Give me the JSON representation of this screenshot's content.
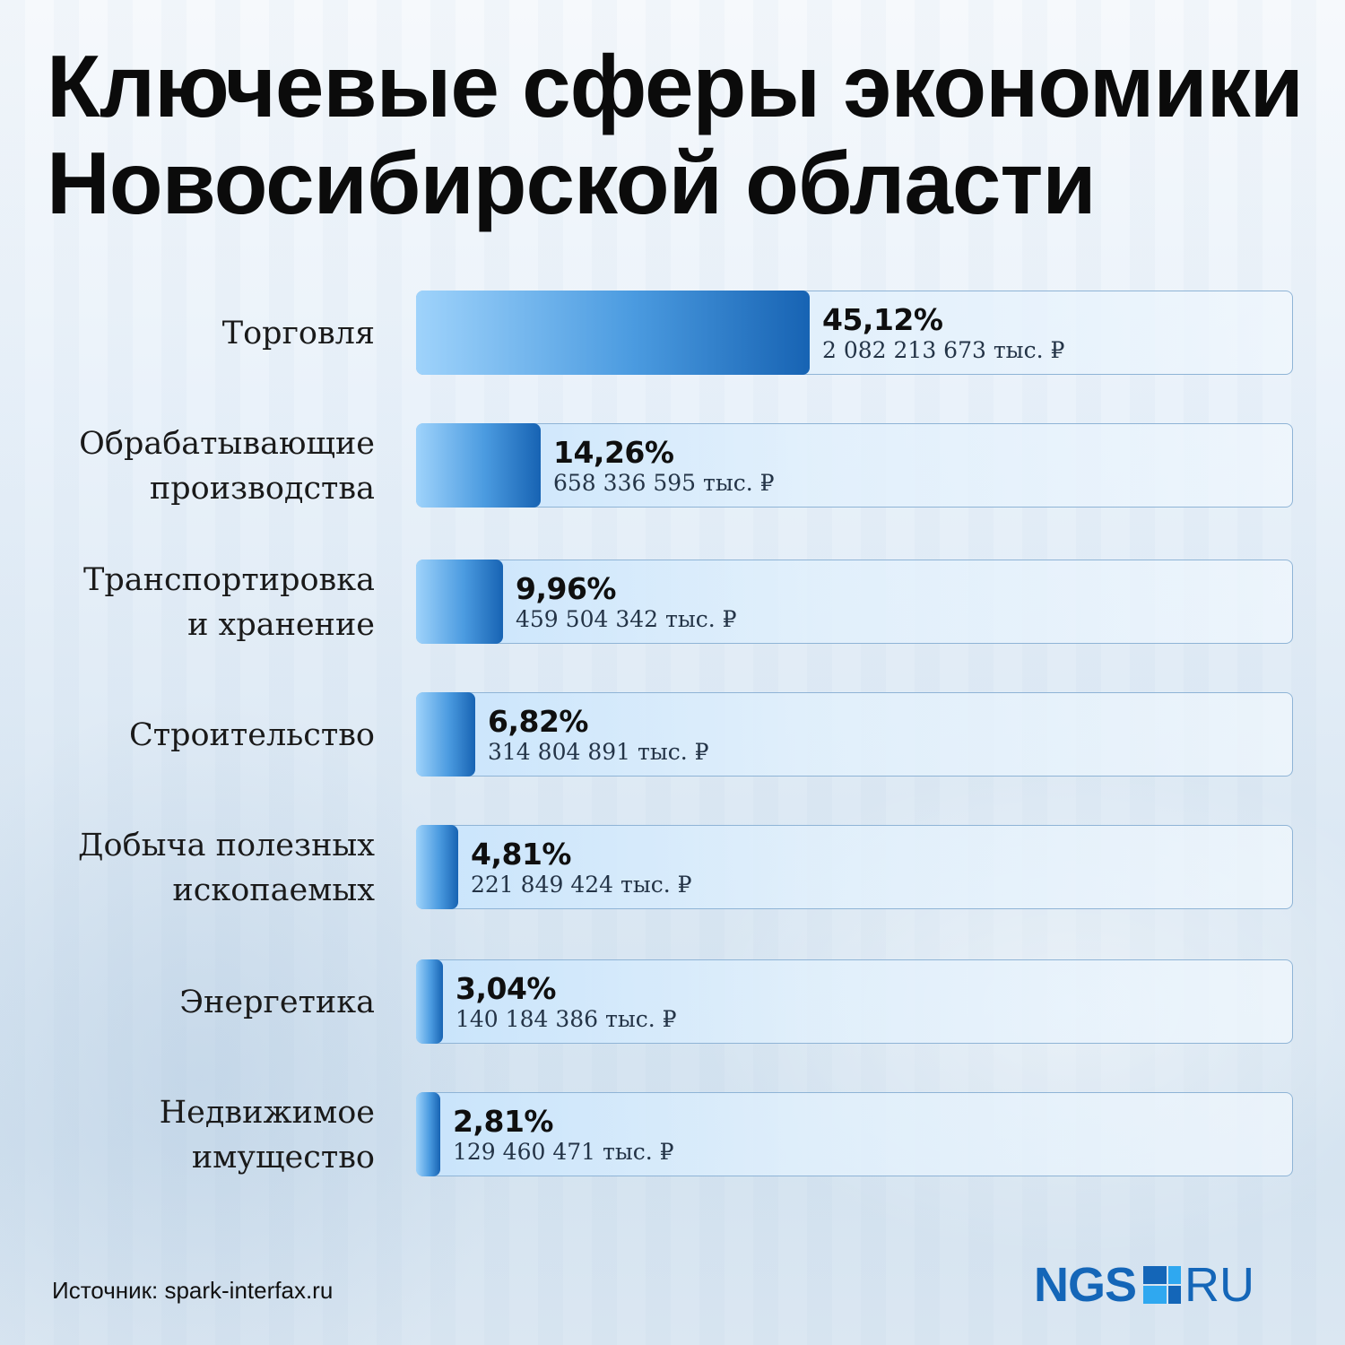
{
  "title": {
    "line1": "Ключевые сферы экономики",
    "line2": "Новосибирской области"
  },
  "chart_data": {
    "type": "bar",
    "orientation": "horizontal",
    "title": "Ключевые сферы экономики Новосибирской области",
    "xlim": [
      0,
      100
    ],
    "categories": [
      {
        "line1": "Торговля",
        "line2": ""
      },
      {
        "line1": "Обрабатывающие",
        "line2": "производства"
      },
      {
        "line1": "Транспортировка",
        "line2": "и хранение"
      },
      {
        "line1": "Строительство",
        "line2": ""
      },
      {
        "line1": "Добыча полезных",
        "line2": "ископаемых"
      },
      {
        "line1": "Энергетика",
        "line2": ""
      },
      {
        "line1": "Недвижимое",
        "line2": "имущество"
      }
    ],
    "values": [
      45.12,
      14.26,
      9.96,
      6.82,
      4.81,
      3.04,
      2.81
    ],
    "value_labels": [
      "45,12%",
      "14,26%",
      "9,96%",
      "6,82%",
      "4,81%",
      "3,04%",
      "2,81%"
    ],
    "amount_labels": [
      "2 082 213 673 тыс. ₽",
      "658 336 595 тыс. ₽",
      "459 504 342 тыс. ₽",
      "314 804 891 тыс. ₽",
      "221 849 424 тыс. ₽",
      "140 184 386 тыс. ₽",
      "129 460 471 тыс. ₽"
    ],
    "colors": {
      "bar_start": "#9fd3fb",
      "bar_end": "#1763b3",
      "track_border": "#8fb4d6"
    }
  },
  "source": "Источник: spark-interfax.ru",
  "logo": {
    "left": "NGS",
    "right": "RU",
    "color": "#1466b8",
    "icon": "ngs-square-logo-icon"
  }
}
